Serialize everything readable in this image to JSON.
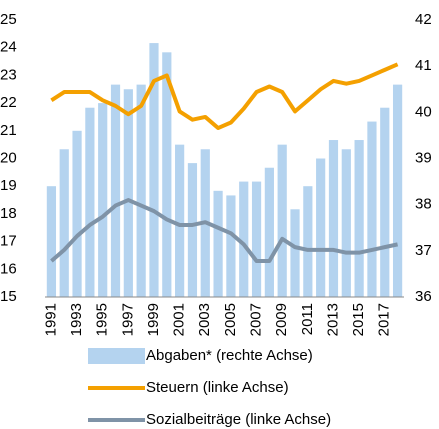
{
  "chart_data": {
    "type": "bar_line",
    "categories": [
      "1991",
      null,
      "1993",
      null,
      "1995",
      null,
      "1997",
      null,
      "1999",
      null,
      "2001",
      null,
      "2003",
      null,
      "2005",
      null,
      "2007",
      null,
      "2009",
      null,
      "2011",
      null,
      "2013",
      null,
      "2015",
      null,
      "2017",
      null
    ],
    "series": [
      {
        "name": "Abgaben* (rechte Achse)",
        "type": "bar",
        "axis": "y2",
        "color": "#b4d3ef",
        "values": [
          38.4,
          39.2,
          39.6,
          40.1,
          40.2,
          40.6,
          40.5,
          40.6,
          41.5,
          41.3,
          39.3,
          38.9,
          39.2,
          38.3,
          38.2,
          38.5,
          38.5,
          38.8,
          39.3,
          37.9,
          38.4,
          39.0,
          39.4,
          39.2,
          39.4,
          39.8,
          40.1,
          40.6
        ]
      },
      {
        "name": "Steuern (linke Achse)",
        "type": "line",
        "color": "#f4a000",
        "values": [
          22.1,
          22.4,
          22.4,
          22.4,
          22.1,
          21.9,
          21.6,
          21.9,
          22.8,
          23.0,
          21.7,
          21.4,
          21.5,
          21.1,
          21.3,
          21.8,
          22.4,
          22.6,
          22.4,
          21.7,
          22.1,
          22.5,
          22.8,
          22.7,
          22.8,
          23.0,
          23.2,
          23.4
        ]
      },
      {
        "name": "Sozialbeiträge (linke Achse)",
        "type": "line",
        "color": "#7f93a7",
        "values": [
          16.3,
          16.7,
          17.2,
          17.6,
          17.9,
          18.3,
          18.5,
          18.3,
          18.1,
          17.8,
          17.6,
          17.6,
          17.7,
          17.5,
          17.3,
          16.9,
          16.3,
          16.3,
          17.1,
          16.8,
          16.7,
          16.7,
          16.7,
          16.6,
          16.6,
          16.7,
          16.8,
          16.9
        ]
      }
    ],
    "ylim": [
      15,
      25
    ],
    "yticks": [
      15,
      16,
      17,
      18,
      19,
      20,
      21,
      22,
      23,
      24,
      25
    ],
    "y2lim": [
      36,
      42
    ],
    "y2ticks": [
      36,
      37,
      38,
      39,
      40,
      41,
      42
    ]
  }
}
